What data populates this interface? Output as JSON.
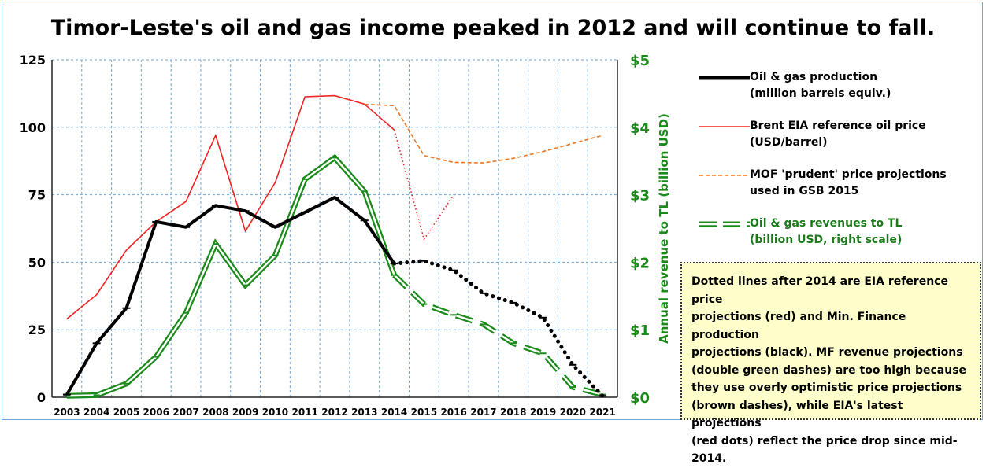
{
  "chart_data": {
    "type": "line",
    "title": "Timor-Leste's oil and gas income peaked in 2012 and will continue to fall.",
    "x": [
      2003,
      2004,
      2005,
      2006,
      2007,
      2008,
      2009,
      2010,
      2011,
      2012,
      2013,
      2014,
      2015,
      2016,
      2017,
      2018,
      2019,
      2020,
      2021
    ],
    "y_left": {
      "min": 0,
      "max": 125,
      "ticks": [
        "0",
        "25",
        "50",
        "75",
        "100",
        "125"
      ]
    },
    "y_right": {
      "min": 0,
      "max": 5,
      "ticks": [
        "$0",
        "$1",
        "$2",
        "$3",
        "$4",
        "$5"
      ],
      "label": "Annual revenue to TL (billion USD)"
    },
    "grid": true,
    "legend_position": "right",
    "series": [
      {
        "name": "Oil & gas production",
        "name_line2": "(million barrels equiv.)",
        "axis": "left",
        "color": "#000000",
        "actual": {
          "x": [
            2003,
            2004,
            2005,
            2006,
            2007,
            2008,
            2009,
            2010,
            2011,
            2012,
            2013,
            2014
          ],
          "y": [
            1,
            20,
            33,
            65,
            63,
            71,
            69,
            63,
            68.5,
            74,
            65.5,
            49.5
          ]
        },
        "projected": {
          "x": [
            2014,
            2015,
            2016,
            2017,
            2018,
            2019,
            2020,
            2021
          ],
          "y": [
            49.5,
            50.5,
            47,
            38.5,
            35,
            29.5,
            12,
            0.5
          ]
        }
      },
      {
        "name": "Brent EIA reference oil price",
        "name_line2": "(USD/barrel)",
        "axis": "left",
        "color": "#ee2222",
        "actual": {
          "x": [
            2003,
            2004,
            2005,
            2006,
            2007,
            2008,
            2009,
            2010,
            2011,
            2012,
            2013,
            2014
          ],
          "y": [
            29,
            38,
            54.5,
            65,
            72.5,
            97,
            61.5,
            79.5,
            111.3,
            111.7,
            108.6,
            99
          ]
        },
        "projected": {
          "x": [
            2014,
            2015,
            2016
          ],
          "y": [
            99,
            58.5,
            75
          ]
        }
      },
      {
        "name": "MOF 'prudent' price projections",
        "name_line2": "used in GSB 2015",
        "axis": "left",
        "color": "#ee7722",
        "x": [
          2013,
          2014,
          2015,
          2016,
          2017,
          2018,
          2019,
          2020,
          2021
        ],
        "y": [
          108.5,
          108,
          89.5,
          87,
          86.8,
          88.5,
          91,
          94,
          97
        ]
      },
      {
        "name": "Oil & gas revenues to TL",
        "name_line2": "(billion USD, right scale)",
        "axis": "right",
        "color": "#1a8a1a",
        "actual": {
          "x": [
            2003,
            2004,
            2005,
            2006,
            2007,
            2008,
            2009,
            2010,
            2011,
            2012,
            2013,
            2014
          ],
          "y": [
            0.02,
            0.03,
            0.2,
            0.6,
            1.25,
            2.27,
            1.66,
            2.1,
            3.23,
            3.55,
            3.05,
            1.81
          ]
        },
        "projected": {
          "x": [
            2014,
            2015,
            2016,
            2017,
            2018,
            2019,
            2020,
            2021
          ],
          "y": [
            1.81,
            1.38,
            1.22,
            1.08,
            0.8,
            0.65,
            0.15,
            0.04
          ]
        }
      }
    ],
    "annotation": "Dotted lines after 2014 are EIA reference price projections (red) and Min. Finance production projections (black). MF revenue projections (double green dashes) are too high because they use overly optimistic price projections (brown dashes), while EIA's latest projections (red dots) reflect the price drop since mid-2014."
  },
  "note_lines": [
    "Dotted lines after 2014 are EIA reference price",
    "projections (red) and Min. Finance production",
    "projections (black). MF revenue projections",
    "(double green dashes) are too high because",
    "they use overly optimistic price projections",
    "(brown dashes), while EIA's latest projections",
    "(red dots) reflect the price drop since mid-2014."
  ],
  "colors": {
    "grid": "#6fa6d6",
    "green": "#1a8a1a",
    "green_text": "#1a7a1a",
    "note_bg": "#ffffcc"
  }
}
